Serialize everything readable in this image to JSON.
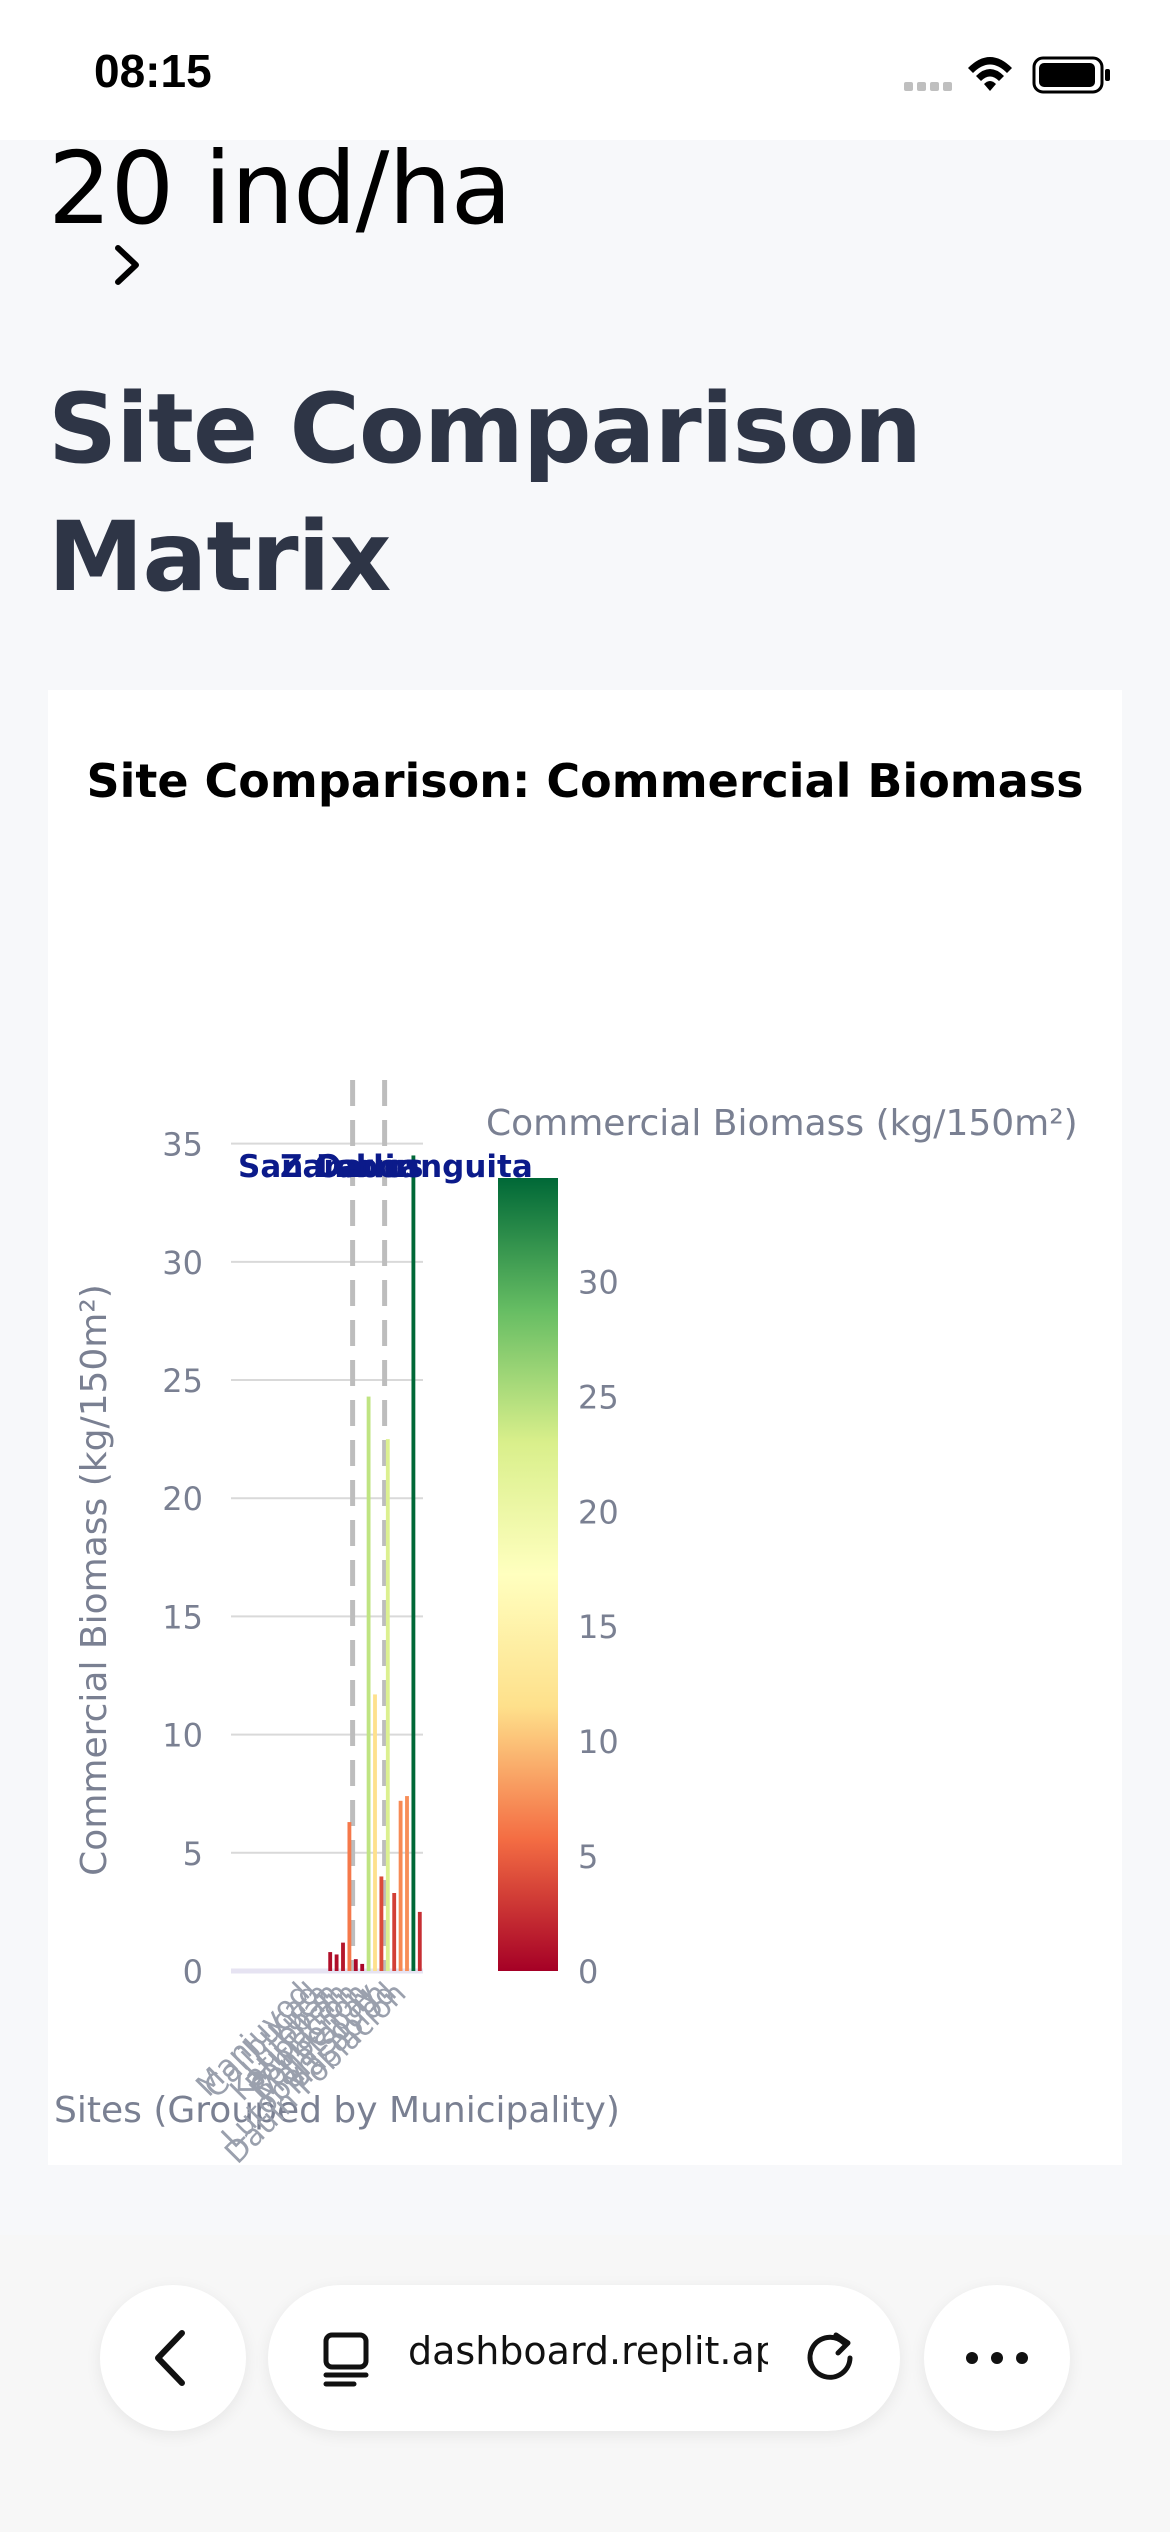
{
  "status": {
    "time": "08:15"
  },
  "metric": {
    "value": "20 ind/ha"
  },
  "section": {
    "title": "Site Comparison Matrix"
  },
  "browser": {
    "url": "dashboard.replit.app"
  },
  "icons": {
    "signal": "cellular-signal-icon",
    "wifi": "wifi-icon",
    "battery": "battery-icon",
    "chevron": "chevron-right-icon",
    "back": "chevron-left-icon",
    "tabs": "tabs-icon",
    "reload": "reload-icon",
    "more": "more-dots-icon"
  },
  "chart_data": {
    "type": "bar",
    "title": "Site Comparison: Commercial Biomass",
    "xlabel": "Sites (Grouped by Municipality)",
    "ylabel": "Commercial Biomass (kg/150m²)",
    "ylim": [
      0,
      36
    ],
    "yticks": [
      0,
      5,
      10,
      15,
      20,
      25,
      30,
      35
    ],
    "grid": true,
    "colorbar": {
      "title": "Commercial Biomass (kg/150m²)",
      "ticks": [
        0,
        5,
        10,
        15,
        20,
        25,
        30
      ],
      "range": [
        0,
        34.5
      ],
      "colors": [
        "#a50026",
        "#f46d43",
        "#fee08b",
        "#ffffbf",
        "#d9ef8b",
        "#66bd63",
        "#006837"
      ]
    },
    "values": [
      0,
      0,
      0,
      0,
      0,
      0,
      0,
      0,
      0,
      0,
      0,
      0,
      0,
      0,
      0,
      0.8,
      0.7,
      1.2,
      6.3,
      0.5,
      0.3,
      24.3,
      11.7,
      4.0,
      22.5,
      3.3,
      7.2,
      7.4,
      34.5,
      2.5
    ],
    "municipality_labels": [
      "San Carlos",
      "Zamboanguita",
      "Dauin"
    ],
    "municipality_dividers_after": [
      18,
      23
    ],
    "tick_labels": [
      "Manjuyod",
      "Calibucad",
      "Luca",
      "Lutoban",
      "Katipunan",
      "Poblacion",
      "Bonbonon",
      "Malatapay",
      "Lutoban South",
      "Masaplod",
      "Dauin Poblacion"
    ]
  }
}
